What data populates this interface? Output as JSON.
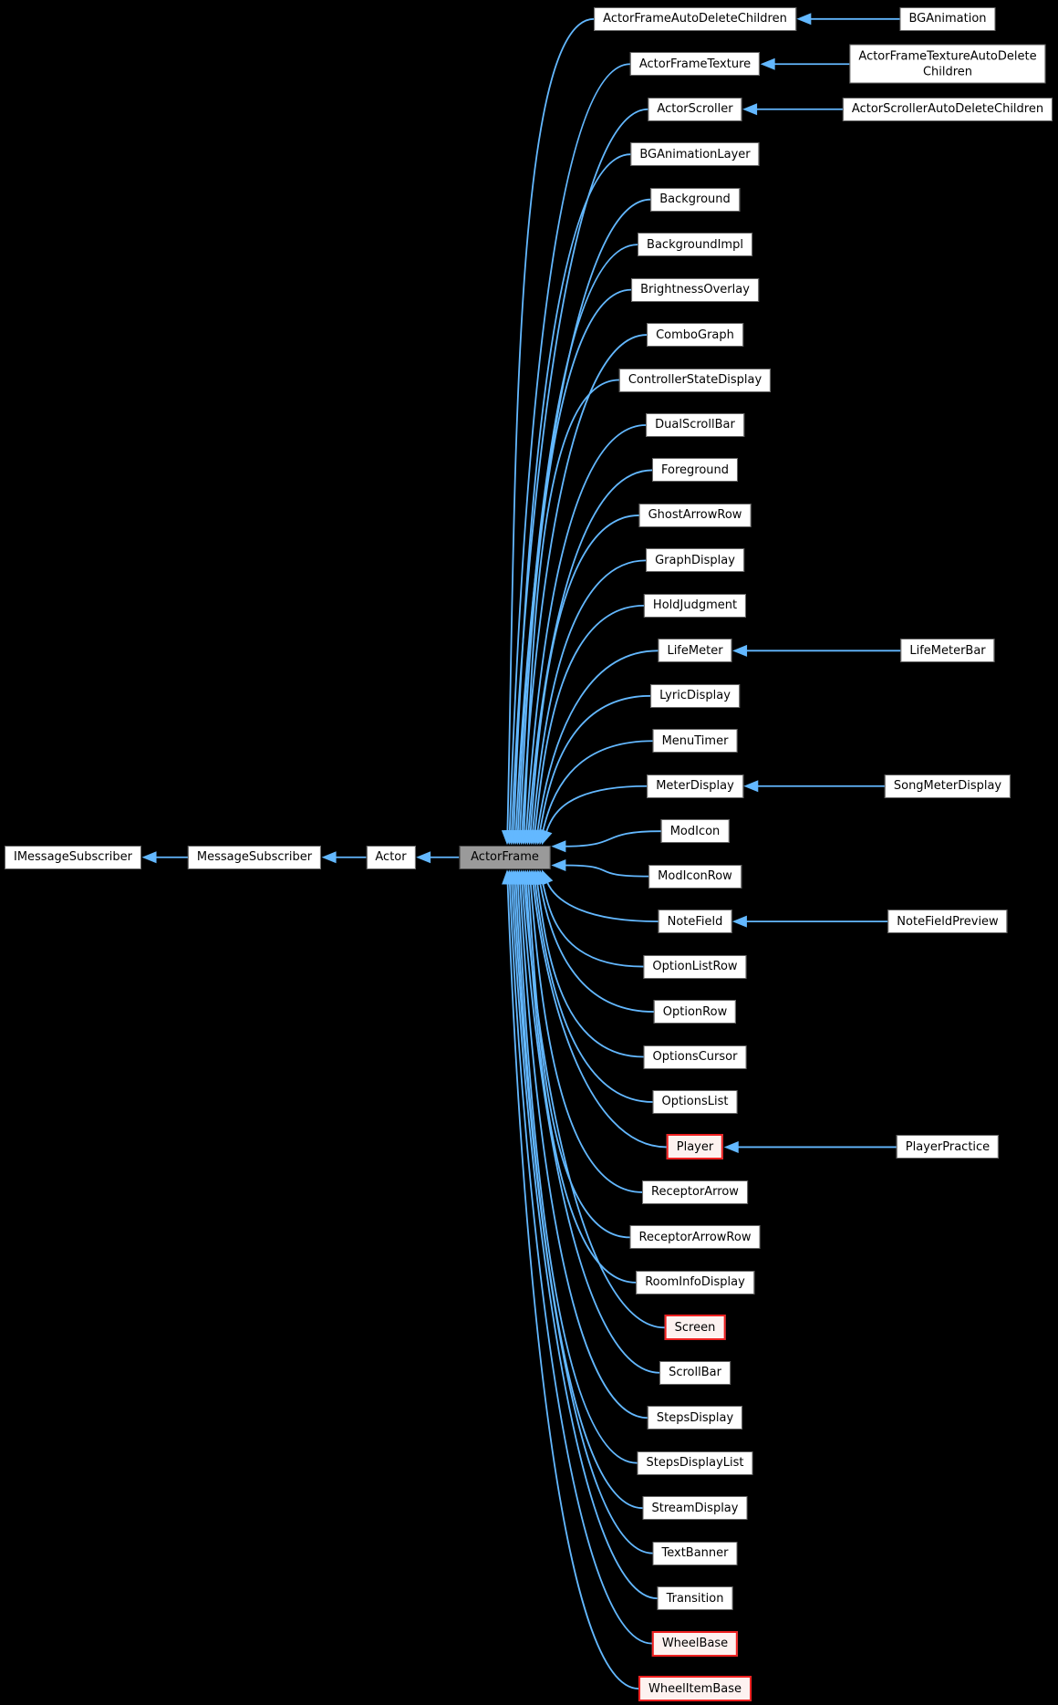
{
  "colors": {
    "background": "#000000",
    "edge": "#63b8ff",
    "node_fill": "#ffffff",
    "node_border": "#646464",
    "node_text": "#000000",
    "root_fill": "#9a9a9a",
    "root_border": "#4c4c4c",
    "truncated_border": "#ee2020",
    "truncated_fill": "#fdf2f0"
  },
  "graph": {
    "root": {
      "label": "ActorFrame"
    },
    "base_chain": [
      {
        "label": "IMessageSubscriber"
      },
      {
        "label": "MessageSubscriber"
      },
      {
        "label": "Actor"
      }
    ],
    "children": [
      {
        "label": "ActorFrameAutoDeleteChildren",
        "sub": {
          "label": "BGAnimation"
        }
      },
      {
        "label": "ActorFrameTexture",
        "sub": {
          "label": "ActorFrameTextureAutoDelete\nChildren",
          "two_line": true
        }
      },
      {
        "label": "ActorScroller",
        "sub": {
          "label": "ActorScrollerAutoDeleteChildren"
        }
      },
      {
        "label": "BGAnimationLayer"
      },
      {
        "label": "Background"
      },
      {
        "label": "BackgroundImpl"
      },
      {
        "label": "BrightnessOverlay"
      },
      {
        "label": "ComboGraph"
      },
      {
        "label": "ControllerStateDisplay"
      },
      {
        "label": "DualScrollBar"
      },
      {
        "label": "Foreground"
      },
      {
        "label": "GhostArrowRow"
      },
      {
        "label": "GraphDisplay"
      },
      {
        "label": "HoldJudgment"
      },
      {
        "label": "LifeMeter",
        "sub": {
          "label": "LifeMeterBar"
        }
      },
      {
        "label": "LyricDisplay"
      },
      {
        "label": "MenuTimer"
      },
      {
        "label": "MeterDisplay",
        "sub": {
          "label": "SongMeterDisplay"
        }
      },
      {
        "label": "ModIcon"
      },
      {
        "label": "ModIconRow"
      },
      {
        "label": "NoteField",
        "sub": {
          "label": "NoteFieldPreview"
        }
      },
      {
        "label": "OptionListRow"
      },
      {
        "label": "OptionRow"
      },
      {
        "label": "OptionsCursor"
      },
      {
        "label": "OptionsList"
      },
      {
        "label": "Player",
        "red": true,
        "sub": {
          "label": "PlayerPractice"
        }
      },
      {
        "label": "ReceptorArrow"
      },
      {
        "label": "ReceptorArrowRow"
      },
      {
        "label": "RoomInfoDisplay"
      },
      {
        "label": "Screen",
        "red": true
      },
      {
        "label": "ScrollBar"
      },
      {
        "label": "StepsDisplay"
      },
      {
        "label": "StepsDisplayList"
      },
      {
        "label": "StreamDisplay"
      },
      {
        "label": "TextBanner"
      },
      {
        "label": "Transition"
      },
      {
        "label": "WheelBase",
        "red": true
      },
      {
        "label": "WheelItemBase",
        "red": true
      }
    ]
  }
}
